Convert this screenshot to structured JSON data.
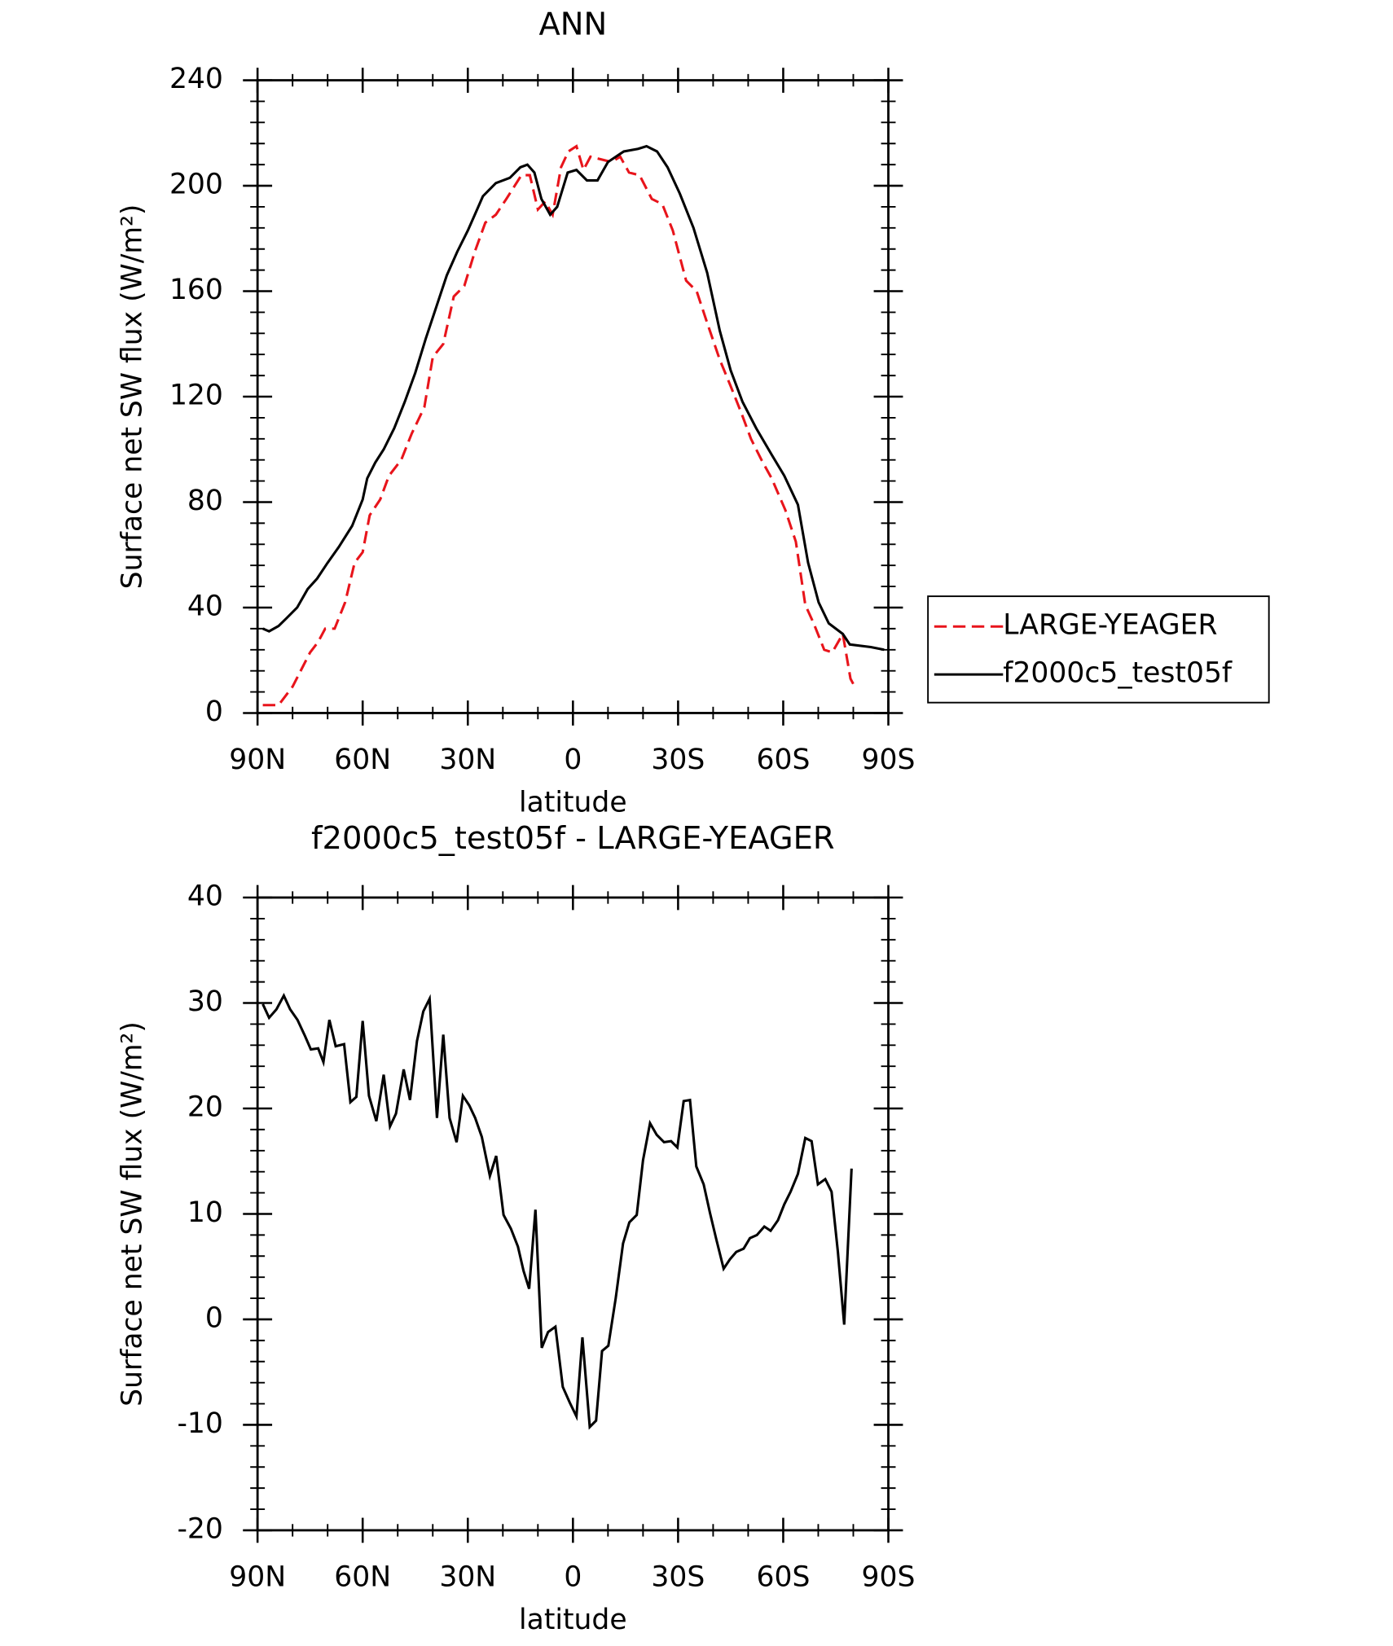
{
  "chart_data": [
    {
      "type": "line",
      "title": "ANN",
      "xlabel": "latitude",
      "ylabel": "Surface net SW flux (W/m²)",
      "xlim": [
        90,
        -90
      ],
      "xticks": [
        {
          "value": 90,
          "label": "90N"
        },
        {
          "value": 60,
          "label": "60N"
        },
        {
          "value": 30,
          "label": "30N"
        },
        0,
        {
          "value": -30,
          "label": "30S"
        },
        {
          "value": -60,
          "label": "60S"
        },
        {
          "value": -90,
          "label": "90S"
        }
      ],
      "ylim": [
        0,
        240
      ],
      "yticks": [
        0,
        40,
        80,
        120,
        160,
        200,
        240
      ],
      "legend": "right",
      "series": [
        {
          "name": "LARGE-YEAGER",
          "color": "#e8141b",
          "line_style": "dashed",
          "x": [
            88.5,
            84,
            80,
            75,
            72.7,
            70.7,
            68,
            65,
            62.3,
            60,
            58,
            55,
            52.5,
            49,
            46,
            42.4,
            40,
            37,
            34,
            31,
            28,
            25,
            22,
            19,
            14.7,
            12.3,
            10,
            7.9,
            5.8,
            3.4,
            1.3,
            -1,
            -3,
            -5,
            -8,
            -11,
            -13.5,
            -16,
            -19,
            -22.5,
            -25.5,
            -28.5,
            -32.3,
            -35.3,
            -38.3,
            -41.9,
            -45,
            -48,
            -50.8,
            -53.8,
            -56.7,
            -60.6,
            -63.6,
            -66.3,
            -68.7,
            -71.7,
            -74,
            -77,
            -79.2,
            -80
          ],
          "values": [
            3,
            3,
            10,
            23,
            27,
            32,
            32,
            42,
            57,
            61,
            75,
            81,
            90,
            96,
            106,
            116,
            135,
            140,
            158,
            162,
            175,
            186,
            189,
            195,
            204,
            204,
            191,
            194,
            189,
            207,
            213,
            215,
            206,
            211,
            210,
            209,
            211,
            205,
            204,
            195,
            193,
            183,
            164,
            160,
            148,
            134,
            124,
            114,
            104,
            96,
            89,
            77,
            65,
            41,
            34,
            24,
            23,
            30,
            13,
            11
          ]
        },
        {
          "name": "f2000c5_test05f",
          "color": "#000000",
          "line_style": "solid",
          "x": [
            88.5,
            86.7,
            84,
            81.7,
            78.7,
            75.7,
            73,
            70,
            66.8,
            63,
            60,
            58.7,
            56.4,
            54,
            51,
            48,
            45,
            42,
            39,
            36,
            33,
            30,
            28,
            25.7,
            22,
            18,
            15,
            13,
            11,
            9,
            6.5,
            4.5,
            1.5,
            -1,
            -4,
            -7,
            -10,
            -14.5,
            -18.6,
            -21,
            -24,
            -27,
            -30.5,
            -34.4,
            -38.3,
            -41.9,
            -45,
            -48.4,
            -52.3,
            -56.7,
            -60.3,
            -64.2,
            -67.1,
            -70.1,
            -73,
            -77,
            -79,
            -85,
            -88.8
          ],
          "values": [
            32,
            31,
            33,
            36,
            40,
            47,
            51,
            57,
            63,
            71,
            81,
            89,
            95,
            100,
            108,
            118,
            129,
            142,
            154,
            166,
            175,
            183,
            189,
            196,
            201,
            203,
            207,
            208,
            205,
            195,
            189,
            192,
            205,
            206,
            202,
            202,
            209,
            213,
            214,
            215,
            213,
            207,
            197,
            184,
            167,
            145,
            130,
            118,
            108,
            98,
            90,
            79,
            57,
            42,
            34,
            30,
            26,
            25,
            24
          ]
        }
      ]
    },
    {
      "type": "line",
      "title": "f2000c5_test05f - LARGE-YEAGER",
      "xlabel": "latitude",
      "ylabel": "Surface net SW flux (W/m²)",
      "xlim": [
        90,
        -90
      ],
      "xticks": [
        {
          "value": 90,
          "label": "90N"
        },
        {
          "value": 60,
          "label": "60N"
        },
        {
          "value": 30,
          "label": "30N"
        },
        0,
        {
          "value": -30,
          "label": "30S"
        },
        {
          "value": -60,
          "label": "60S"
        },
        {
          "value": -90,
          "label": "90S"
        }
      ],
      "ylim": [
        -20,
        40
      ],
      "yticks": [
        -20,
        -10,
        0,
        10,
        20,
        30,
        40
      ],
      "series": [
        {
          "color": "#000000",
          "line_style": "solid",
          "x": [
            88.5,
            86.7,
            84.6,
            82.5,
            80.7,
            78.6,
            76.5,
            74.8,
            72.7,
            71.2,
            69.5,
            67.7,
            65.3,
            63.5,
            61.8,
            60,
            58.2,
            56.1,
            54,
            52.2,
            50.5,
            48.3,
            46.5,
            44.5,
            42.7,
            40.9,
            38.8,
            37,
            35.2,
            33.2,
            31.4,
            29.6,
            27.9,
            26,
            23.7,
            21.9,
            19.8,
            17.7,
            15.7,
            14.1,
            12.5,
            10.7,
            8.9,
            7.1,
            5,
            2.9,
            0.9,
            -1,
            -2.7,
            -4.8,
            -6.6,
            -8.3,
            -10.1,
            -12.2,
            -14.3,
            -16.1,
            -18.2,
            -20,
            -22,
            -23.9,
            -26,
            -28,
            -29.8,
            -31.6,
            -33.4,
            -35.2,
            -37.3,
            -39.1,
            -40.9,
            -43,
            -44.8,
            -46.6,
            -48.7,
            -50.5,
            -52.5,
            -54.6,
            -56.4,
            -58.5,
            -60.3,
            -62.1,
            -64.2,
            -66.3,
            -68.1,
            -69.9,
            -72,
            -73.8,
            -75.6,
            -77.4,
            -79.5
          ],
          "values": [
            29.9,
            28.6,
            29.4,
            30.7,
            29.4,
            28.4,
            26.9,
            25.6,
            25.7,
            24.4,
            28.4,
            25.9,
            26.1,
            20.6,
            21.1,
            28.3,
            21.2,
            18.8,
            23.2,
            18.3,
            19.5,
            23.7,
            20.8,
            26.4,
            29.2,
            30.4,
            19.1,
            27,
            19.1,
            16.8,
            21.2,
            20.3,
            19.1,
            17.3,
            13.6,
            15.5,
            9.9,
            8.6,
            6.9,
            4.6,
            2.9,
            10.4,
            -2.7,
            -1.2,
            -0.7,
            -6.4,
            -7.9,
            -9.2,
            -1.7,
            -10.2,
            -9.6,
            -3,
            -2.5,
            2,
            7.2,
            9.2,
            9.9,
            15.1,
            18.6,
            17.5,
            16.8,
            16.9,
            16.3,
            20.7,
            20.8,
            14.5,
            12.8,
            10.1,
            7.6,
            4.8,
            5.7,
            6.4,
            6.7,
            7.7,
            8,
            8.8,
            8.4,
            9.4,
            10.9,
            12.1,
            13.8,
            17.2,
            16.9,
            12.8,
            13.3,
            12.1,
            6.4,
            -0.5,
            14.3
          ]
        }
      ]
    }
  ]
}
